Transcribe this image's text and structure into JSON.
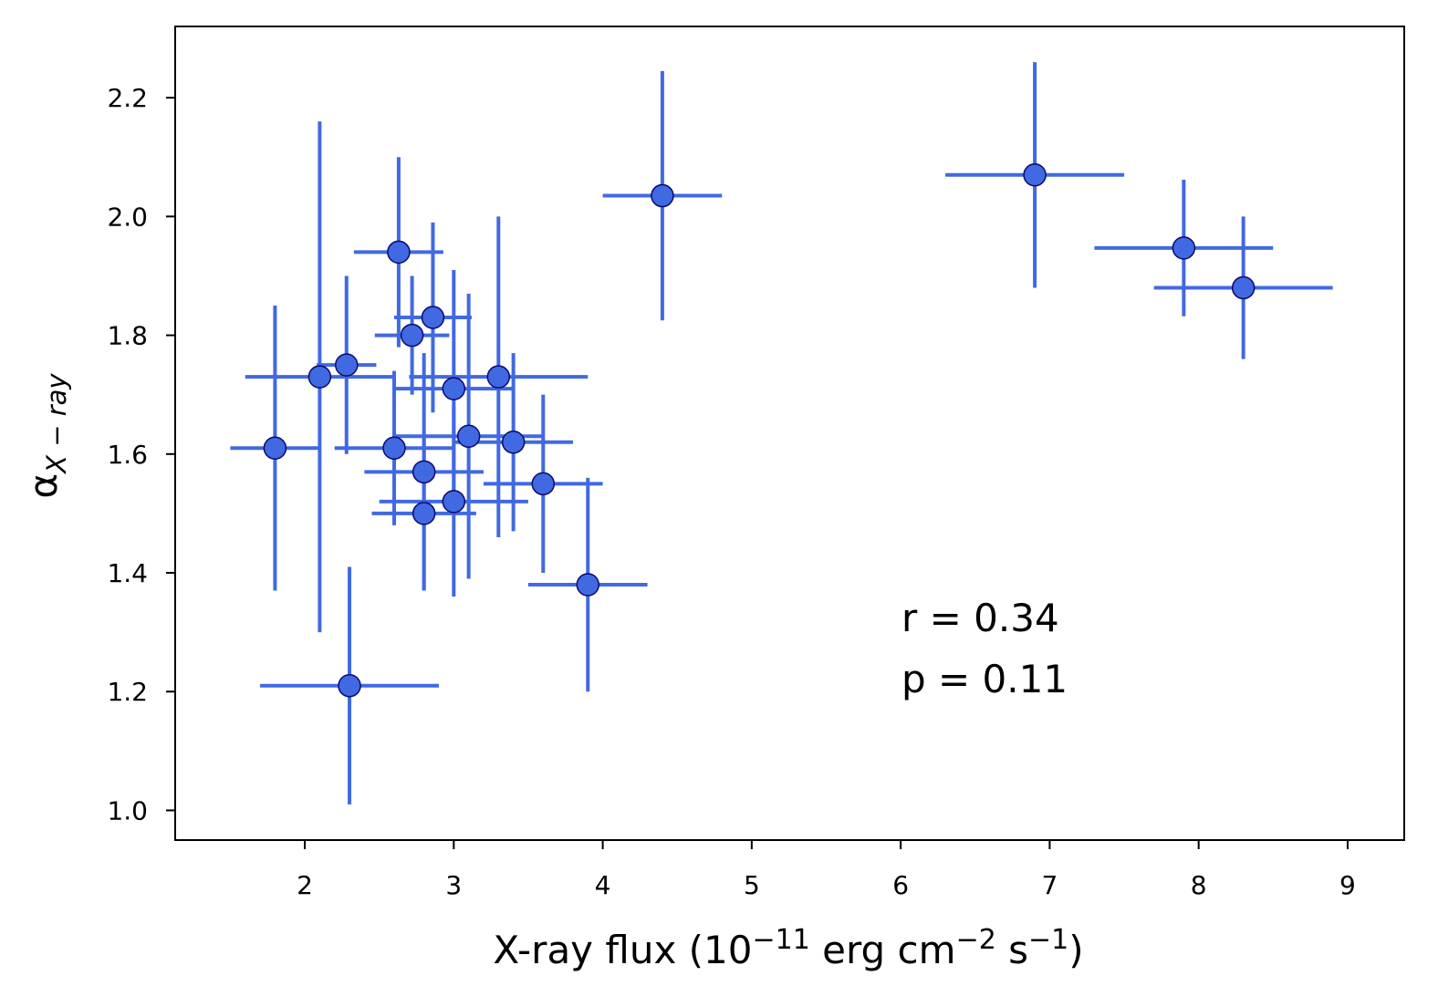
{
  "chart_data": {
    "type": "scatter",
    "xlabel": {
      "main": "X-ray flux (10",
      "exp1": "−11",
      "mid": " erg cm",
      "exp2": "−2",
      "mid2": " s",
      "exp3": "−1",
      "end": ")"
    },
    "ylabel": {
      "symbol": "α",
      "subscript": "X − ray"
    },
    "xlim": [
      1.13,
      9.38
    ],
    "ylim": [
      0.95,
      2.32
    ],
    "xticks": [
      2,
      3,
      4,
      5,
      6,
      7,
      8,
      9
    ],
    "yticks": [
      1.0,
      1.2,
      1.4,
      1.6,
      1.8,
      2.0,
      2.2
    ],
    "xtick_labels": [
      "2",
      "3",
      "4",
      "5",
      "6",
      "7",
      "8",
      "9"
    ],
    "ytick_labels": [
      "1.0",
      "1.2",
      "1.4",
      "1.6",
      "1.8",
      "2.0",
      "2.2"
    ],
    "grid": false,
    "annotations": [
      "r = 0.34",
      "p = 0.11"
    ],
    "colors": {
      "marker": "#4169e1",
      "marker_edge": "#0a0a6e",
      "errorbar": "#4169e1"
    },
    "points": [
      {
        "x": 1.8,
        "y": 1.61,
        "xerr": 0.3,
        "yerr": 0.24
      },
      {
        "x": 2.1,
        "y": 1.73,
        "xerr": 0.5,
        "yerr": 0.43
      },
      {
        "x": 2.28,
        "y": 1.75,
        "xerr": 0.2,
        "yerr": 0.15
      },
      {
        "x": 2.3,
        "y": 1.21,
        "xerr": 0.6,
        "yerr": 0.2
      },
      {
        "x": 2.6,
        "y": 1.61,
        "xerr": 0.4,
        "yerr": 0.13
      },
      {
        "x": 2.63,
        "y": 1.94,
        "xerr": 0.3,
        "yerr": 0.16
      },
      {
        "x": 2.72,
        "y": 1.8,
        "xerr": 0.25,
        "yerr": 0.1
      },
      {
        "x": 2.8,
        "y": 1.57,
        "xerr": 0.4,
        "yerr": 0.2
      },
      {
        "x": 2.8,
        "y": 1.5,
        "xerr": 0.35,
        "yerr": 0.13
      },
      {
        "x": 2.86,
        "y": 1.83,
        "xerr": 0.26,
        "yerr": 0.16
      },
      {
        "x": 3.0,
        "y": 1.71,
        "xerr": 0.4,
        "yerr": 0.2
      },
      {
        "x": 3.0,
        "y": 1.52,
        "xerr": 0.5,
        "yerr": 0.16
      },
      {
        "x": 3.1,
        "y": 1.63,
        "xerr": 0.5,
        "yerr": 0.24
      },
      {
        "x": 3.3,
        "y": 1.73,
        "xerr": 0.6,
        "yerr": 0.27
      },
      {
        "x": 3.4,
        "y": 1.62,
        "xerr": 0.4,
        "yerr": 0.15
      },
      {
        "x": 3.6,
        "y": 1.55,
        "xerr": 0.4,
        "yerr": 0.15
      },
      {
        "x": 3.9,
        "y": 1.38,
        "xerr": 0.4,
        "yerr": 0.18
      },
      {
        "x": 4.4,
        "y": 2.035,
        "xerr": 0.4,
        "yerr": 0.21
      },
      {
        "x": 6.9,
        "y": 2.07,
        "xerr": 0.6,
        "yerr": 0.19
      },
      {
        "x": 7.9,
        "y": 1.947,
        "xerr": 0.6,
        "yerr": 0.115
      },
      {
        "x": 8.3,
        "y": 1.88,
        "xerr": 0.6,
        "yerr": 0.12
      }
    ]
  }
}
